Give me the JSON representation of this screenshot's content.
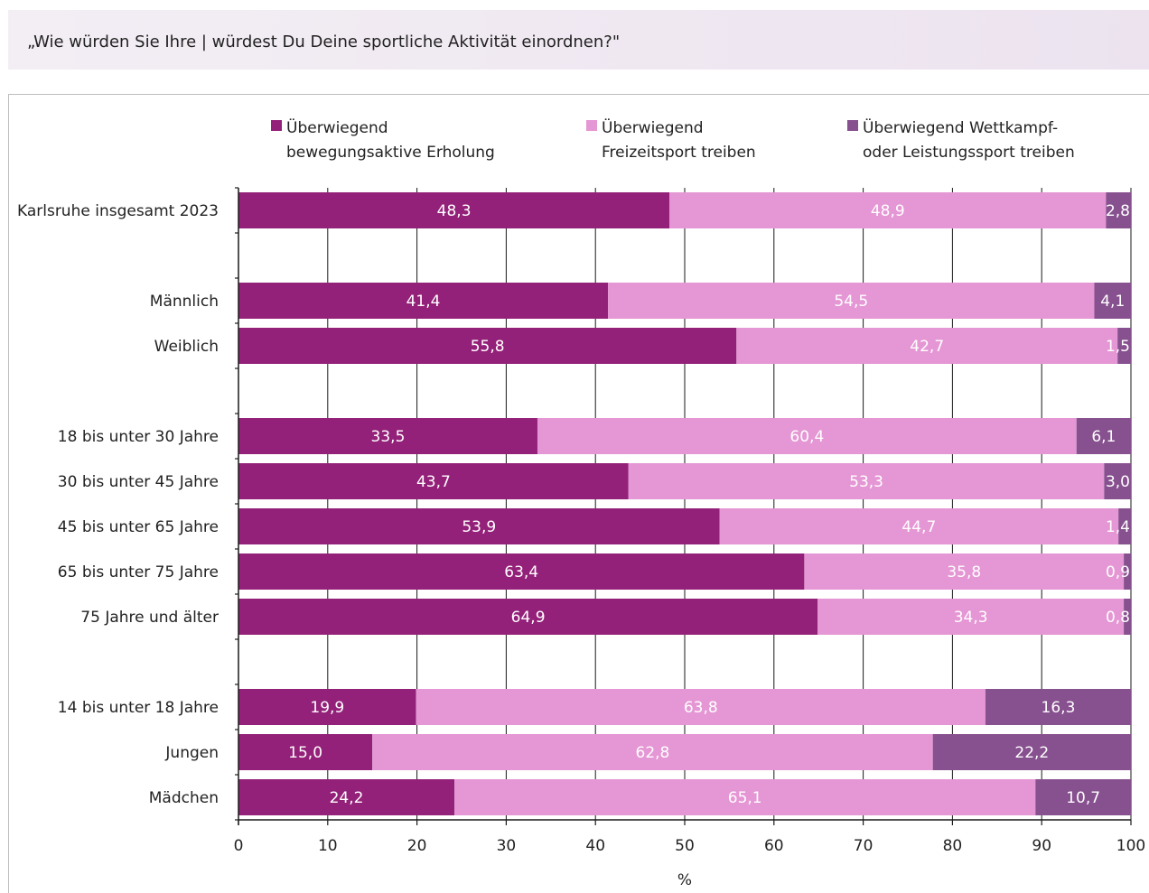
{
  "header": {
    "question": "„Wie würden Sie Ihre | würdest Du Deine sportliche Aktivität einordnen?\""
  },
  "colors": {
    "series1": "#942179",
    "series2": "#e596d4",
    "series3": "#87508f",
    "grid": "#1a1a1a",
    "header_bg": "#efe7f1"
  },
  "chart_data": {
    "type": "bar",
    "orientation": "horizontal",
    "stacked": true,
    "title": "",
    "xlabel": "%",
    "ylabel": "",
    "xlim": [
      0,
      100
    ],
    "xticks": [
      "0",
      "10",
      "20",
      "30",
      "40",
      "50",
      "60",
      "70",
      "80",
      "90",
      "100"
    ],
    "grid": "vertical",
    "legend_position": "top",
    "categories": [
      "Karlsruhe insgesamt 2023",
      "",
      "Männlich",
      "Weiblich",
      "",
      "18 bis unter 30 Jahre",
      "30 bis unter 45 Jahre",
      "45 bis unter 65 Jahre",
      "65 bis unter 75 Jahre",
      "75 Jahre und älter",
      "",
      "14 bis unter 18 Jahre",
      "Jungen",
      "Mädchen"
    ],
    "series": [
      {
        "name": "Überwiegend bewegungsaktive Erholung",
        "legend_lines": [
          "Überwiegend",
          "bewegungsaktive Erholung"
        ],
        "values": [
          48.3,
          null,
          41.4,
          55.8,
          null,
          33.5,
          43.7,
          53.9,
          63.4,
          64.9,
          null,
          19.9,
          15.0,
          24.2
        ],
        "labels": [
          "48,3",
          "",
          "41,4",
          "55,8",
          "",
          "33,5",
          "43,7",
          "53,9",
          "63,4",
          "64,9",
          "",
          "19,9",
          "15,0",
          "24,2"
        ]
      },
      {
        "name": "Überwiegend Freizeitsport treiben",
        "legend_lines": [
          "Überwiegend",
          "Freizeitsport treiben"
        ],
        "values": [
          48.9,
          null,
          54.5,
          42.7,
          null,
          60.4,
          53.3,
          44.7,
          35.8,
          34.3,
          null,
          63.8,
          62.8,
          65.1
        ],
        "labels": [
          "48,9",
          "",
          "54,5",
          "42,7",
          "",
          "60,4",
          "53,3",
          "44,7",
          "35,8",
          "34,3",
          "",
          "63,8",
          "62,8",
          "65,1"
        ]
      },
      {
        "name": "Überwiegend Wettkampf- oder Leistungssport treiben",
        "legend_lines": [
          "Überwiegend Wettkampf-",
          "oder Leistungssport treiben"
        ],
        "values": [
          2.8,
          null,
          4.1,
          1.5,
          null,
          6.1,
          3.0,
          1.4,
          0.9,
          0.8,
          null,
          16.3,
          22.2,
          10.7
        ],
        "labels": [
          "2,8",
          "",
          "4,1",
          "1,5",
          "",
          "6,1",
          "3,0",
          "1,4",
          "0,9",
          "0,8",
          "",
          "16,3",
          "22,2",
          "10,7"
        ]
      }
    ]
  }
}
